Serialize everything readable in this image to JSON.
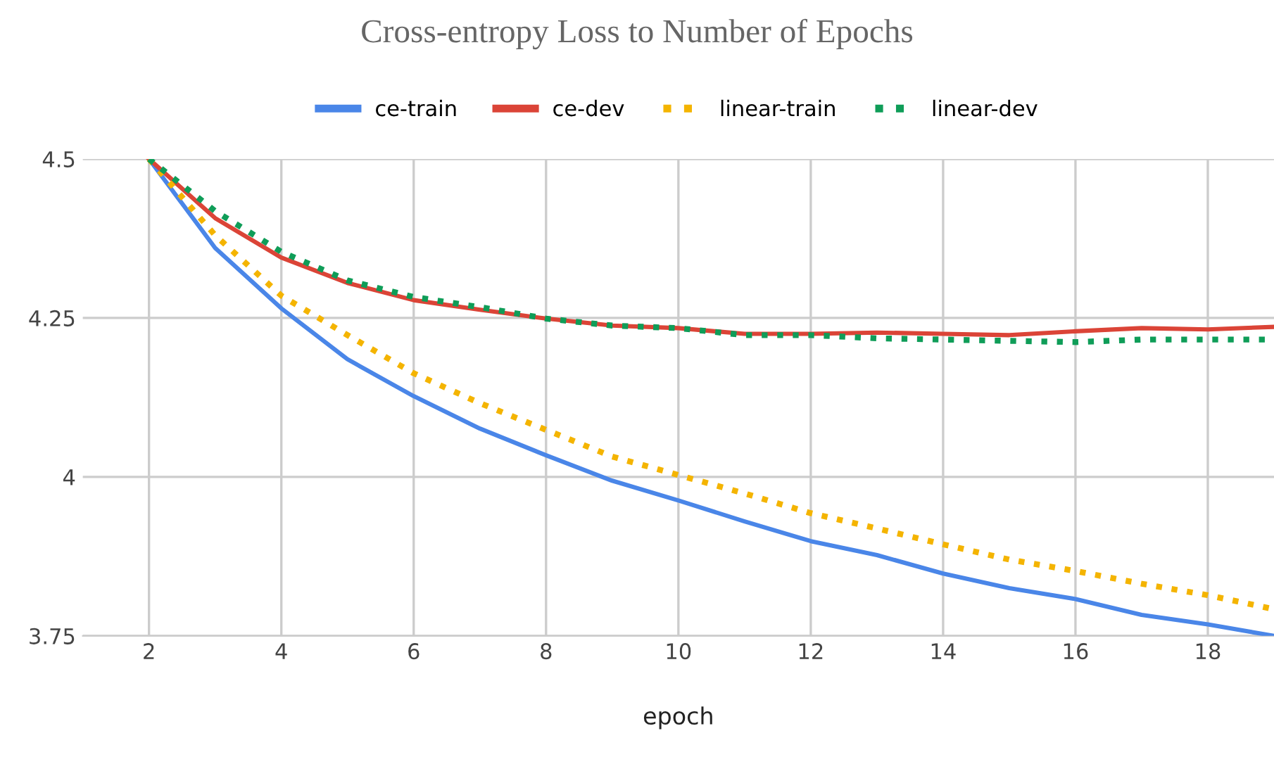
{
  "chart_data": {
    "type": "line",
    "title": "Cross-entropy Loss to Number of Epochs",
    "xlabel": "epoch",
    "x": [
      2,
      3,
      4,
      5,
      6,
      7,
      8,
      9,
      10,
      11,
      12,
      13,
      14,
      15,
      16,
      17,
      18,
      19
    ],
    "series": [
      {
        "name": "ce-train",
        "color": "#4a86e8",
        "line_style": "solid",
        "values": [
          4.5,
          4.36,
          4.265,
          4.185,
          4.127,
          4.076,
          4.034,
          3.994,
          3.963,
          3.93,
          3.899,
          3.877,
          3.848,
          3.825,
          3.808,
          3.783,
          3.768,
          3.75
        ]
      },
      {
        "name": "ce-dev",
        "color": "#db4437",
        "line_style": "solid",
        "values": [
          4.5,
          4.407,
          4.345,
          4.305,
          4.278,
          4.263,
          4.249,
          4.238,
          4.234,
          4.225,
          4.225,
          4.227,
          4.225,
          4.223,
          4.229,
          4.234,
          4.232,
          4.236
        ]
      },
      {
        "name": "linear-train",
        "color": "#f4b400",
        "line_style": "dotted",
        "values": [
          4.5,
          4.38,
          4.285,
          4.223,
          4.163,
          4.116,
          4.074,
          4.032,
          4.003,
          3.974,
          3.943,
          3.919,
          3.894,
          3.87,
          3.852,
          3.832,
          3.814,
          3.792
        ]
      },
      {
        "name": "linear-dev",
        "color": "#0f9d58",
        "line_style": "dotted",
        "values": [
          4.5,
          4.418,
          4.354,
          4.309,
          4.283,
          4.267,
          4.249,
          4.238,
          4.234,
          4.223,
          4.223,
          4.218,
          4.216,
          4.214,
          4.212,
          4.216,
          4.216,
          4.216
        ]
      }
    ],
    "xlim": [
      1,
      19
    ],
    "xticks": [
      2,
      4,
      6,
      8,
      10,
      12,
      14,
      16,
      18
    ],
    "ylim": [
      3.75,
      4.5
    ],
    "yticks": [
      3.75,
      4,
      4.25,
      4.5
    ],
    "grid": true,
    "legend": "top",
    "marker": "none"
  }
}
